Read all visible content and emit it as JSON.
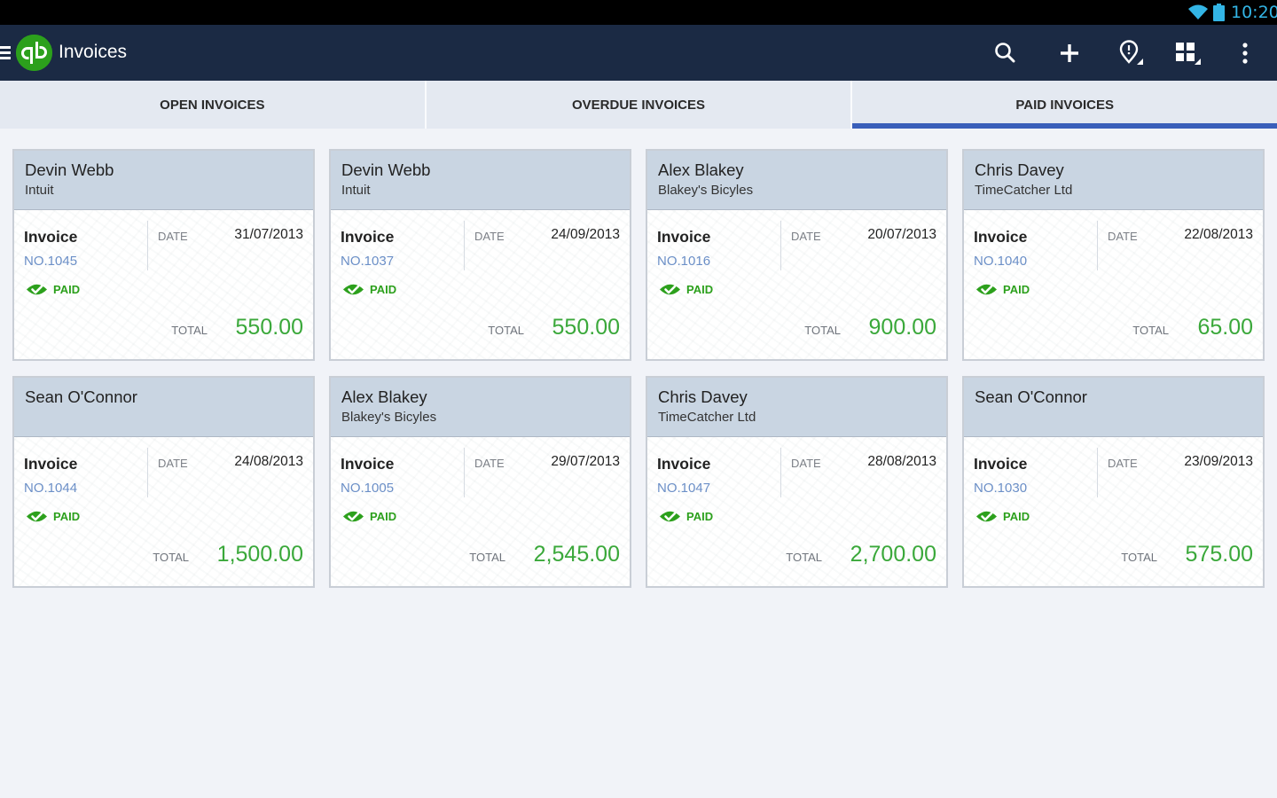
{
  "status_bar": {
    "time": "10:20"
  },
  "app_bar": {
    "title": "Invoices"
  },
  "tabs": [
    {
      "label": "OPEN INVOICES",
      "selected": false
    },
    {
      "label": "OVERDUE INVOICES",
      "selected": false
    },
    {
      "label": "PAID INVOICES",
      "selected": true
    }
  ],
  "labels": {
    "invoice": "Invoice",
    "date": "DATE",
    "total": "TOTAL",
    "paid": "PAID"
  },
  "invoices": [
    {
      "client": "Devin Webb",
      "company": "Intuit",
      "number": "NO.1045",
      "date": "31/07/2013",
      "total": "550.00"
    },
    {
      "client": "Devin Webb",
      "company": "Intuit",
      "number": "NO.1037",
      "date": "24/09/2013",
      "total": "550.00"
    },
    {
      "client": "Alex Blakey",
      "company": "Blakey's Bicyles",
      "number": "NO.1016",
      "date": "20/07/2013",
      "total": "900.00"
    },
    {
      "client": "Chris Davey",
      "company": "TimeCatcher Ltd",
      "number": "NO.1040",
      "date": "22/08/2013",
      "total": "65.00"
    },
    {
      "client": "Sean O'Connor",
      "company": "",
      "number": "NO.1044",
      "date": "24/08/2013",
      "total": "1,500.00"
    },
    {
      "client": "Alex Blakey",
      "company": "Blakey's Bicyles",
      "number": "NO.1005",
      "date": "29/07/2013",
      "total": "2,545.00"
    },
    {
      "client": "Chris Davey",
      "company": "TimeCatcher Ltd",
      "number": "NO.1047",
      "date": "28/08/2013",
      "total": "2,700.00"
    },
    {
      "client": "Sean O'Connor",
      "company": "",
      "number": "NO.1030",
      "date": "23/09/2013",
      "total": "575.00"
    }
  ],
  "colors": {
    "app_bar": "#1b2a44",
    "brand_green": "#2ca01c",
    "tab_indicator": "#3a5fba",
    "amount_green": "#3aa83a",
    "invoice_number": "#6b8fc7"
  }
}
